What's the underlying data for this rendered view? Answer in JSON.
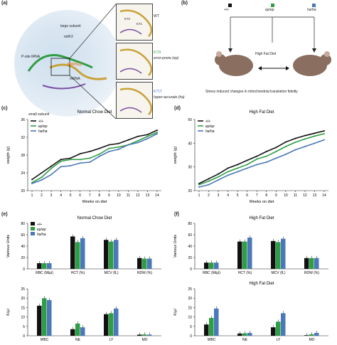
{
  "panels": {
    "a": "(a)",
    "b": "(b)",
    "c": "(c)",
    "d": "(d)",
    "e": "(e)",
    "f": "(f)"
  },
  "panel_a": {
    "large_subunit": "large subunit",
    "mtif2": "mtIF2",
    "psite_trna": "P-site tRNA",
    "mrps12": "MRPS12",
    "mrna": "mRNA",
    "small_subunit": "small subunit",
    "insets": [
      {
        "residue1": "K72",
        "residue2": "K71",
        "label": "WT",
        "sub": ""
      },
      {
        "residue1": "K72I",
        "residue2": "",
        "label": "error-prone (ep)",
        "sub": ""
      },
      {
        "residue1": "K71T",
        "residue2": "",
        "label": "hyper-accurate (ha)",
        "sub": ""
      }
    ]
  },
  "panel_b": {
    "genotypes": [
      "+/+",
      "ep/ep",
      "ha/ha"
    ],
    "diet": "High Fat Diet",
    "caption": "Stress induced changes in mitochondrial translation fidelity",
    "colors": {
      "wt": "#111111",
      "ep": "#2e9e44",
      "ha": "#4a78b8"
    }
  },
  "legend": {
    "wt": "+/+",
    "ep": "ep/ep",
    "ha": "ha/ha"
  },
  "chart_data": [
    {
      "id": "c",
      "type": "line",
      "title": "Normal Chow Diet",
      "xlabel": "Weeks on diet",
      "ylabel": "weight (g)",
      "x": [
        1,
        2,
        3,
        4,
        5,
        6,
        7,
        8,
        9,
        10,
        11,
        12,
        13,
        14
      ],
      "ylim": [
        20,
        36
      ],
      "yticks": [
        20,
        24,
        28,
        32,
        36
      ],
      "series": [
        {
          "name": "+/+",
          "values": [
            22.5,
            24.0,
            25.5,
            27.0,
            27.3,
            28.3,
            28.8,
            29.5,
            30.3,
            30.6,
            31.4,
            32.2,
            32.6,
            33.6
          ]
        },
        {
          "name": "ep/ep",
          "values": [
            21.8,
            23.0,
            25.0,
            26.6,
            27.0,
            27.0,
            27.3,
            28.2,
            29.5,
            29.8,
            30.3,
            31.2,
            32.2,
            33.1
          ]
        },
        {
          "name": "ha/ha",
          "values": [
            21.6,
            22.4,
            23.6,
            25.4,
            25.6,
            26.2,
            26.4,
            27.7,
            28.8,
            29.3,
            30.3,
            30.8,
            31.7,
            32.8
          ]
        }
      ]
    },
    {
      "id": "d",
      "type": "line",
      "title": "High Fat Diet",
      "xlabel": "Weeks on diet",
      "ylabel": "weight (g)",
      "x": [
        1,
        2,
        3,
        4,
        5,
        6,
        7,
        8,
        9,
        10,
        11,
        12,
        13,
        14
      ],
      "ylim": [
        20,
        50
      ],
      "yticks": [
        20,
        30,
        40,
        50
      ],
      "series": [
        {
          "name": "+/+",
          "values": [
            23.0,
            25.0,
            27.0,
            29.5,
            31.0,
            32.8,
            34.5,
            36.5,
            38.2,
            40.5,
            42.0,
            43.2,
            44.2,
            45.2
          ]
        },
        {
          "name": "ep/ep",
          "values": [
            22.5,
            24.0,
            25.8,
            28.0,
            29.5,
            31.0,
            33.3,
            34.5,
            36.5,
            38.6,
            40.4,
            41.8,
            43.0,
            44.0
          ]
        },
        {
          "name": "ha/ha",
          "values": [
            21.5,
            22.5,
            24.5,
            26.5,
            28.0,
            29.5,
            31.0,
            32.0,
            33.7,
            35.3,
            37.2,
            38.6,
            40.0,
            41.4
          ]
        }
      ]
    },
    {
      "id": "e1",
      "type": "bar",
      "title": "Normal Chow Diet",
      "ylabel": "Various Units",
      "categories": [
        "RBC (M/µl)",
        "HCT (%)",
        "MCV (fL)",
        "RDW (%)"
      ],
      "ylim": [
        0,
        80
      ],
      "yticks": [
        0,
        20,
        40,
        60,
        80
      ],
      "series": [
        {
          "name": "+/+",
          "values": [
            10,
            57,
            51,
            19
          ]
        },
        {
          "name": "ep/ep",
          "values": [
            10,
            47,
            48,
            18
          ]
        },
        {
          "name": "ha/ha",
          "values": [
            10,
            54,
            51,
            18
          ]
        }
      ]
    },
    {
      "id": "f1",
      "type": "bar",
      "title": "High Fat Diet",
      "ylabel": "Various Units",
      "categories": [
        "RBC (M/µl)",
        "HCT (%)",
        "MCV (fL)",
        "RDW (%)"
      ],
      "ylim": [
        0,
        80
      ],
      "yticks": [
        0,
        20,
        40,
        60,
        80
      ],
      "series": [
        {
          "name": "+/+",
          "values": [
            11,
            48,
            49,
            19
          ]
        },
        {
          "name": "ep/ep",
          "values": [
            11,
            48,
            47,
            19
          ]
        },
        {
          "name": "ha/ha",
          "values": [
            11,
            55,
            53,
            19
          ]
        }
      ]
    },
    {
      "id": "e2",
      "type": "bar",
      "title": "",
      "ylabel": "K/µl",
      "categories": [
        "WBC",
        "NE",
        "LY",
        "MO"
      ],
      "ylim": [
        0,
        25
      ],
      "yticks": [
        0,
        5,
        10,
        15,
        20,
        25
      ],
      "series": [
        {
          "name": "+/+",
          "values": [
            16.0,
            3.5,
            11.5,
            0.6
          ]
        },
        {
          "name": "ep/ep",
          "values": [
            20.0,
            6.5,
            12.0,
            0.7
          ]
        },
        {
          "name": "ha/ha",
          "values": [
            19.0,
            4.5,
            14.5,
            0.6
          ]
        }
      ]
    },
    {
      "id": "f2",
      "type": "bar",
      "title": "High Fat Diet",
      "ylabel": "K/µl",
      "categories": [
        "WBC",
        "NE",
        "LY",
        "MO"
      ],
      "ylim": [
        0,
        25
      ],
      "yticks": [
        0,
        5,
        10,
        15,
        20,
        25
      ],
      "series": [
        {
          "name": "+/+",
          "values": [
            6.0,
            1.2,
            4.5,
            0.3
          ]
        },
        {
          "name": "ep/ep",
          "values": [
            9.5,
            1.3,
            7.5,
            0.8
          ]
        },
        {
          "name": "ha/ha",
          "values": [
            14.5,
            1.5,
            12.0,
            1.5
          ]
        }
      ]
    }
  ]
}
